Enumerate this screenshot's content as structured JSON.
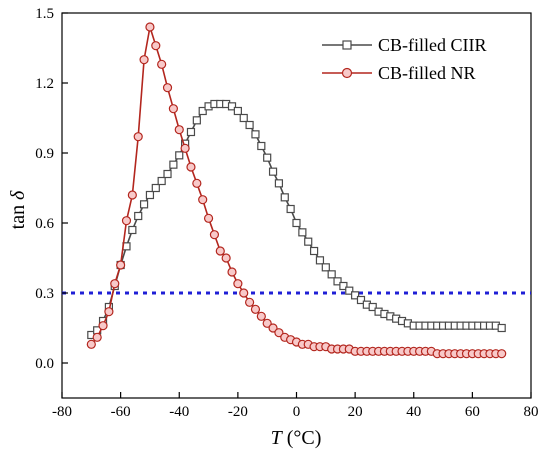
{
  "chart_data": {
    "type": "line",
    "title": "",
    "xlabel": {
      "italic": "T",
      "rest": " (°C)"
    },
    "ylabel": {
      "plain": "tan ",
      "italic": "δ"
    },
    "xlim": [
      -80,
      80
    ],
    "ylim": [
      -0.15,
      1.5
    ],
    "xticks": [
      -80,
      -60,
      -40,
      -20,
      0,
      20,
      40,
      60,
      80
    ],
    "yticks": [
      0.0,
      0.3,
      0.6,
      0.9,
      1.2,
      1.5
    ],
    "ytick_labels": [
      "0.0",
      "0.3",
      "0.6",
      "0.9",
      "1.2",
      "1.5"
    ],
    "grid": false,
    "legend_position": "top-right",
    "reference_line": {
      "y": 0.3,
      "style": "dotted",
      "color": "#1f1fd6"
    },
    "series": [
      {
        "name": "CB-filled CIIR",
        "color": "#4a4a4a",
        "marker": "square",
        "x": [
          -70,
          -68,
          -66,
          -64,
          -62,
          -60,
          -58,
          -56,
          -54,
          -52,
          -50,
          -48,
          -46,
          -44,
          -42,
          -40,
          -38,
          -36,
          -34,
          -32,
          -30,
          -28,
          -26,
          -24,
          -22,
          -20,
          -18,
          -16,
          -14,
          -12,
          -10,
          -8,
          -6,
          -4,
          -2,
          0,
          2,
          4,
          6,
          8,
          10,
          12,
          14,
          16,
          18,
          20,
          22,
          24,
          26,
          28,
          30,
          32,
          34,
          36,
          38,
          40,
          42,
          44,
          46,
          48,
          50,
          52,
          54,
          56,
          58,
          60,
          62,
          64,
          66,
          68,
          70
        ],
        "y": [
          0.12,
          0.14,
          0.18,
          0.24,
          0.33,
          0.42,
          0.5,
          0.57,
          0.63,
          0.68,
          0.72,
          0.75,
          0.78,
          0.81,
          0.85,
          0.89,
          0.94,
          0.99,
          1.04,
          1.08,
          1.1,
          1.11,
          1.11,
          1.11,
          1.1,
          1.08,
          1.05,
          1.02,
          0.98,
          0.93,
          0.88,
          0.82,
          0.77,
          0.71,
          0.66,
          0.6,
          0.56,
          0.52,
          0.48,
          0.44,
          0.41,
          0.38,
          0.35,
          0.33,
          0.31,
          0.29,
          0.27,
          0.25,
          0.24,
          0.22,
          0.21,
          0.2,
          0.19,
          0.18,
          0.17,
          0.16,
          0.16,
          0.16,
          0.16,
          0.16,
          0.16,
          0.16,
          0.16,
          0.16,
          0.16,
          0.16,
          0.16,
          0.16,
          0.16,
          0.16,
          0.15
        ]
      },
      {
        "name": "CB-filled NR",
        "color": "#b3261e",
        "marker": "circle",
        "x": [
          -70,
          -68,
          -66,
          -64,
          -62,
          -60,
          -58,
          -56,
          -54,
          -52,
          -50,
          -48,
          -46,
          -44,
          -42,
          -40,
          -38,
          -36,
          -34,
          -32,
          -30,
          -28,
          -26,
          -24,
          -22,
          -20,
          -18,
          -16,
          -14,
          -12,
          -10,
          -8,
          -6,
          -4,
          -2,
          0,
          2,
          4,
          6,
          8,
          10,
          12,
          14,
          16,
          18,
          20,
          22,
          24,
          26,
          28,
          30,
          32,
          34,
          36,
          38,
          40,
          42,
          44,
          46,
          48,
          50,
          52,
          54,
          56,
          58,
          60,
          62,
          64,
          66,
          68,
          70
        ],
        "y": [
          0.08,
          0.11,
          0.16,
          0.22,
          0.34,
          0.42,
          0.61,
          0.72,
          0.97,
          1.3,
          1.44,
          1.36,
          1.28,
          1.18,
          1.09,
          1.0,
          0.92,
          0.84,
          0.77,
          0.7,
          0.62,
          0.55,
          0.48,
          0.45,
          0.39,
          0.34,
          0.3,
          0.26,
          0.23,
          0.2,
          0.17,
          0.15,
          0.13,
          0.11,
          0.1,
          0.09,
          0.08,
          0.08,
          0.07,
          0.07,
          0.07,
          0.06,
          0.06,
          0.06,
          0.06,
          0.05,
          0.05,
          0.05,
          0.05,
          0.05,
          0.05,
          0.05,
          0.05,
          0.05,
          0.05,
          0.05,
          0.05,
          0.05,
          0.05,
          0.04,
          0.04,
          0.04,
          0.04,
          0.04,
          0.04,
          0.04,
          0.04,
          0.04,
          0.04,
          0.04,
          0.04
        ]
      }
    ]
  }
}
